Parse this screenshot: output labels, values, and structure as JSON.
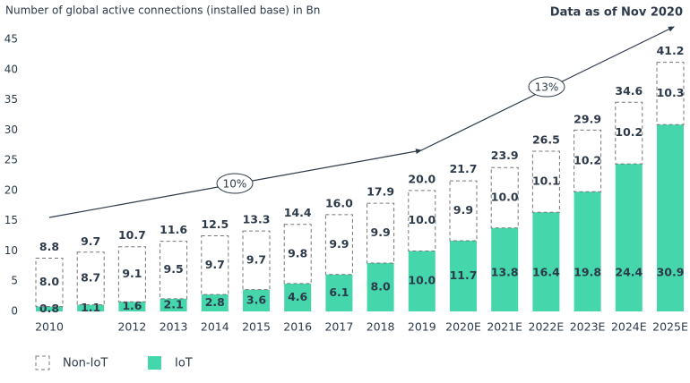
{
  "chart_data": {
    "type": "stacked-bar",
    "y_axis_label": "Number of global active connections (installed base) in Bn",
    "note": "Data as of Nov 2020",
    "annotations": [
      "10%",
      "13%"
    ],
    "categories": [
      "2010",
      null,
      "2012",
      "2013",
      "2014",
      "2015",
      "2016",
      "2017",
      "2018",
      "2019",
      "2020E",
      "2021E",
      "2022E",
      "2023E",
      "2024E",
      "2025E"
    ],
    "series": [
      {
        "name": "IoT",
        "color": "#45d6ab",
        "style": "solid",
        "values": [
          0.8,
          1.1,
          1.6,
          2.1,
          2.8,
          3.6,
          4.6,
          6.1,
          8.0,
          10.0,
          11.7,
          13.8,
          16.4,
          19.8,
          24.4,
          30.9
        ],
        "value_labels": [
          "0.8",
          "1.1",
          "1.6",
          "2.1",
          "2.8",
          "3.6",
          "4.6",
          "6.1",
          "8.0",
          "10.0",
          "11.7",
          "13.8",
          "16.4",
          "19.8",
          "24.4",
          "30.9"
        ]
      },
      {
        "name": "Non-IoT",
        "color": "#777777",
        "style": "dashed",
        "values": [
          8.0,
          8.7,
          9.1,
          9.5,
          9.7,
          9.7,
          9.8,
          9.9,
          9.9,
          10.0,
          9.9,
          10.0,
          10.1,
          10.2,
          10.2,
          10.3
        ],
        "value_labels": [
          "8.0",
          "8.7",
          "9.1",
          "9.5",
          "9.7",
          "9.7",
          "9.8",
          "9.9",
          "9.9",
          "10.0",
          "9.9",
          "10.0",
          "10.1",
          "10.2",
          "10.2",
          "10.3"
        ]
      }
    ],
    "totals": {
      "values": [
        8.8,
        9.7,
        10.7,
        11.6,
        12.5,
        13.3,
        14.4,
        16.0,
        17.9,
        20.0,
        21.7,
        23.9,
        26.5,
        29.9,
        34.6,
        41.2
      ],
      "value_labels": [
        "8.8",
        "9.7",
        "10.7",
        "11.6",
        "12.5",
        "13.3",
        "14.4",
        "16.0",
        "17.9",
        "20.0",
        "21.7",
        "23.9",
        "26.5",
        "29.9",
        "34.6",
        "41.2"
      ]
    },
    "ylim": [
      0,
      45
    ],
    "yticks": [
      0,
      5,
      10,
      15,
      20,
      25,
      30,
      35,
      40,
      45
    ],
    "grid": false
  }
}
